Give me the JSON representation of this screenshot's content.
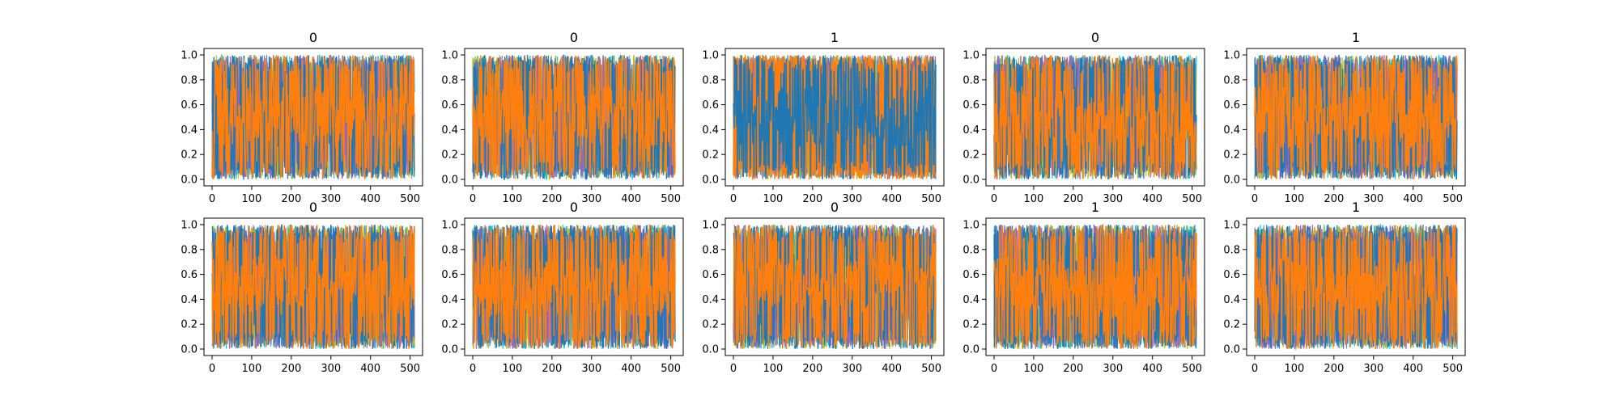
{
  "figure": {
    "background": "#ffffff"
  },
  "colors": {
    "series_a": "#1f77b4",
    "series_b": "#ff7f0e",
    "series_c": "#17becf",
    "series_d": "#bcbd22",
    "series_e": "#9467bd",
    "frame": "#000000"
  },
  "chart_data": [
    {
      "type": "line",
      "title": "0",
      "xlim": [
        0,
        511
      ],
      "ylim": [
        0.0,
        1.0
      ],
      "xticks": [
        0,
        100,
        200,
        300,
        400,
        500
      ],
      "yticks": [
        "0.0",
        "0.2",
        "0.4",
        "0.6",
        "0.8",
        "1.0"
      ],
      "grid": false,
      "series_count": 5,
      "dominant_series": "series_b"
    },
    {
      "type": "line",
      "title": "0",
      "xlim": [
        0,
        511
      ],
      "ylim": [
        0.0,
        1.0
      ],
      "xticks": [
        0,
        100,
        200,
        300,
        400,
        500
      ],
      "yticks": [
        "0.0",
        "0.2",
        "0.4",
        "0.6",
        "0.8",
        "1.0"
      ],
      "grid": false,
      "series_count": 5,
      "dominant_series": "series_b"
    },
    {
      "type": "line",
      "title": "1",
      "xlim": [
        0,
        511
      ],
      "ylim": [
        0.0,
        1.0
      ],
      "xticks": [
        0,
        100,
        200,
        300,
        400,
        500
      ],
      "yticks": [
        "0.0",
        "0.2",
        "0.4",
        "0.6",
        "0.8",
        "1.0"
      ],
      "grid": false,
      "series_count": 5,
      "dominant_series": "series_a"
    },
    {
      "type": "line",
      "title": "0",
      "xlim": [
        0,
        511
      ],
      "ylim": [
        0.0,
        1.0
      ],
      "xticks": [
        0,
        100,
        200,
        300,
        400,
        500
      ],
      "yticks": [
        "0.0",
        "0.2",
        "0.4",
        "0.6",
        "0.8",
        "1.0"
      ],
      "grid": false,
      "series_count": 5,
      "dominant_series": "series_b"
    },
    {
      "type": "line",
      "title": "1",
      "xlim": [
        0,
        511
      ],
      "ylim": [
        0.0,
        1.0
      ],
      "xticks": [
        0,
        100,
        200,
        300,
        400,
        500
      ],
      "yticks": [
        "0.0",
        "0.2",
        "0.4",
        "0.6",
        "0.8",
        "1.0"
      ],
      "grid": false,
      "series_count": 5,
      "dominant_series": "series_b"
    },
    {
      "type": "line",
      "title": "0",
      "xlim": [
        0,
        511
      ],
      "ylim": [
        0.0,
        1.0
      ],
      "xticks": [
        0,
        100,
        200,
        300,
        400,
        500
      ],
      "yticks": [
        "0.0",
        "0.2",
        "0.4",
        "0.6",
        "0.8",
        "1.0"
      ],
      "grid": false,
      "series_count": 5,
      "dominant_series": "series_b"
    },
    {
      "type": "line",
      "title": "0",
      "xlim": [
        0,
        511
      ],
      "ylim": [
        0.0,
        1.0
      ],
      "xticks": [
        0,
        100,
        200,
        300,
        400,
        500
      ],
      "yticks": [
        "0.0",
        "0.2",
        "0.4",
        "0.6",
        "0.8",
        "1.0"
      ],
      "grid": false,
      "series_count": 5,
      "dominant_series": "series_b"
    },
    {
      "type": "line",
      "title": "0",
      "xlim": [
        0,
        511
      ],
      "ylim": [
        0.0,
        1.0
      ],
      "xticks": [
        0,
        100,
        200,
        300,
        400,
        500
      ],
      "yticks": [
        "0.0",
        "0.2",
        "0.4",
        "0.6",
        "0.8",
        "1.0"
      ],
      "grid": false,
      "series_count": 5,
      "dominant_series": "series_b"
    },
    {
      "type": "line",
      "title": "1",
      "xlim": [
        0,
        511
      ],
      "ylim": [
        0.0,
        1.0
      ],
      "xticks": [
        0,
        100,
        200,
        300,
        400,
        500
      ],
      "yticks": [
        "0.0",
        "0.2",
        "0.4",
        "0.6",
        "0.8",
        "1.0"
      ],
      "grid": false,
      "series_count": 5,
      "dominant_series": "series_b"
    },
    {
      "type": "line",
      "title": "1",
      "xlim": [
        0,
        511
      ],
      "ylim": [
        0.0,
        1.0
      ],
      "xticks": [
        0,
        100,
        200,
        300,
        400,
        500
      ],
      "yticks": [
        "0.0",
        "0.2",
        "0.4",
        "0.6",
        "0.8",
        "1.0"
      ],
      "grid": false,
      "series_count": 5,
      "dominant_series": "series_b"
    }
  ]
}
